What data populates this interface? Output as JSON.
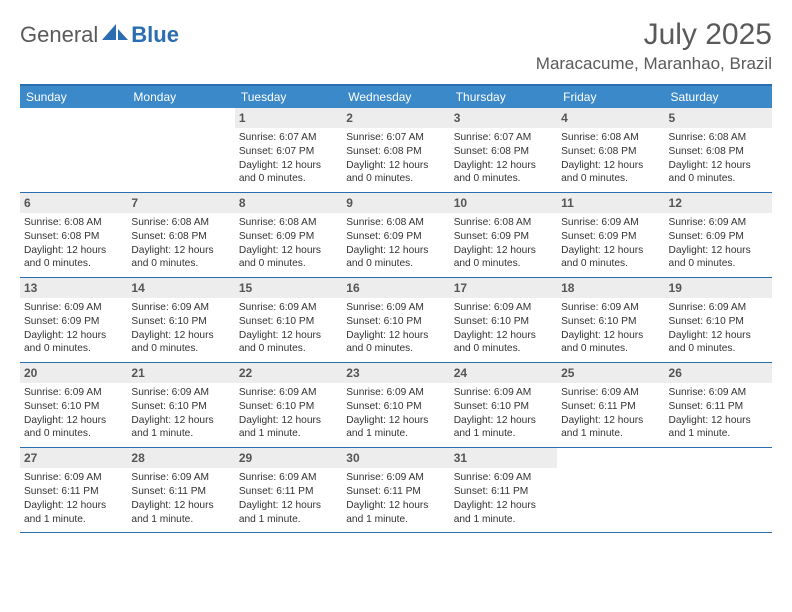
{
  "logo": {
    "general": "General",
    "blue": "Blue"
  },
  "title": {
    "month": "July 2025",
    "location": "Maracacume, Maranhao, Brazil"
  },
  "dow": [
    "Sunday",
    "Monday",
    "Tuesday",
    "Wednesday",
    "Thursday",
    "Friday",
    "Saturday"
  ],
  "colors": {
    "header_bg": "#3b89c9",
    "border": "#2a6db0",
    "daynum_bg": "#ededed",
    "text": "#333333",
    "title_color": "#5a5a5a"
  },
  "labels": {
    "sunrise": "Sunrise:",
    "sunset": "Sunset:",
    "daylight": "Daylight:"
  },
  "weeks": [
    [
      {
        "n": "",
        "sunrise": "",
        "sunset": "",
        "daylight": "",
        "empty": true
      },
      {
        "n": "",
        "sunrise": "",
        "sunset": "",
        "daylight": "",
        "empty": true
      },
      {
        "n": "1",
        "sunrise": "6:07 AM",
        "sunset": "6:07 PM",
        "daylight": "12 hours and 0 minutes."
      },
      {
        "n": "2",
        "sunrise": "6:07 AM",
        "sunset": "6:08 PM",
        "daylight": "12 hours and 0 minutes."
      },
      {
        "n": "3",
        "sunrise": "6:07 AM",
        "sunset": "6:08 PM",
        "daylight": "12 hours and 0 minutes."
      },
      {
        "n": "4",
        "sunrise": "6:08 AM",
        "sunset": "6:08 PM",
        "daylight": "12 hours and 0 minutes."
      },
      {
        "n": "5",
        "sunrise": "6:08 AM",
        "sunset": "6:08 PM",
        "daylight": "12 hours and 0 minutes."
      }
    ],
    [
      {
        "n": "6",
        "sunrise": "6:08 AM",
        "sunset": "6:08 PM",
        "daylight": "12 hours and 0 minutes."
      },
      {
        "n": "7",
        "sunrise": "6:08 AM",
        "sunset": "6:08 PM",
        "daylight": "12 hours and 0 minutes."
      },
      {
        "n": "8",
        "sunrise": "6:08 AM",
        "sunset": "6:09 PM",
        "daylight": "12 hours and 0 minutes."
      },
      {
        "n": "9",
        "sunrise": "6:08 AM",
        "sunset": "6:09 PM",
        "daylight": "12 hours and 0 minutes."
      },
      {
        "n": "10",
        "sunrise": "6:08 AM",
        "sunset": "6:09 PM",
        "daylight": "12 hours and 0 minutes."
      },
      {
        "n": "11",
        "sunrise": "6:09 AM",
        "sunset": "6:09 PM",
        "daylight": "12 hours and 0 minutes."
      },
      {
        "n": "12",
        "sunrise": "6:09 AM",
        "sunset": "6:09 PM",
        "daylight": "12 hours and 0 minutes."
      }
    ],
    [
      {
        "n": "13",
        "sunrise": "6:09 AM",
        "sunset": "6:09 PM",
        "daylight": "12 hours and 0 minutes."
      },
      {
        "n": "14",
        "sunrise": "6:09 AM",
        "sunset": "6:10 PM",
        "daylight": "12 hours and 0 minutes."
      },
      {
        "n": "15",
        "sunrise": "6:09 AM",
        "sunset": "6:10 PM",
        "daylight": "12 hours and 0 minutes."
      },
      {
        "n": "16",
        "sunrise": "6:09 AM",
        "sunset": "6:10 PM",
        "daylight": "12 hours and 0 minutes."
      },
      {
        "n": "17",
        "sunrise": "6:09 AM",
        "sunset": "6:10 PM",
        "daylight": "12 hours and 0 minutes."
      },
      {
        "n": "18",
        "sunrise": "6:09 AM",
        "sunset": "6:10 PM",
        "daylight": "12 hours and 0 minutes."
      },
      {
        "n": "19",
        "sunrise": "6:09 AM",
        "sunset": "6:10 PM",
        "daylight": "12 hours and 0 minutes."
      }
    ],
    [
      {
        "n": "20",
        "sunrise": "6:09 AM",
        "sunset": "6:10 PM",
        "daylight": "12 hours and 0 minutes."
      },
      {
        "n": "21",
        "sunrise": "6:09 AM",
        "sunset": "6:10 PM",
        "daylight": "12 hours and 1 minute."
      },
      {
        "n": "22",
        "sunrise": "6:09 AM",
        "sunset": "6:10 PM",
        "daylight": "12 hours and 1 minute."
      },
      {
        "n": "23",
        "sunrise": "6:09 AM",
        "sunset": "6:10 PM",
        "daylight": "12 hours and 1 minute."
      },
      {
        "n": "24",
        "sunrise": "6:09 AM",
        "sunset": "6:10 PM",
        "daylight": "12 hours and 1 minute."
      },
      {
        "n": "25",
        "sunrise": "6:09 AM",
        "sunset": "6:11 PM",
        "daylight": "12 hours and 1 minute."
      },
      {
        "n": "26",
        "sunrise": "6:09 AM",
        "sunset": "6:11 PM",
        "daylight": "12 hours and 1 minute."
      }
    ],
    [
      {
        "n": "27",
        "sunrise": "6:09 AM",
        "sunset": "6:11 PM",
        "daylight": "12 hours and 1 minute."
      },
      {
        "n": "28",
        "sunrise": "6:09 AM",
        "sunset": "6:11 PM",
        "daylight": "12 hours and 1 minute."
      },
      {
        "n": "29",
        "sunrise": "6:09 AM",
        "sunset": "6:11 PM",
        "daylight": "12 hours and 1 minute."
      },
      {
        "n": "30",
        "sunrise": "6:09 AM",
        "sunset": "6:11 PM",
        "daylight": "12 hours and 1 minute."
      },
      {
        "n": "31",
        "sunrise": "6:09 AM",
        "sunset": "6:11 PM",
        "daylight": "12 hours and 1 minute."
      },
      {
        "n": "",
        "sunrise": "",
        "sunset": "",
        "daylight": "",
        "empty": true
      },
      {
        "n": "",
        "sunrise": "",
        "sunset": "",
        "daylight": "",
        "empty": true
      }
    ]
  ]
}
